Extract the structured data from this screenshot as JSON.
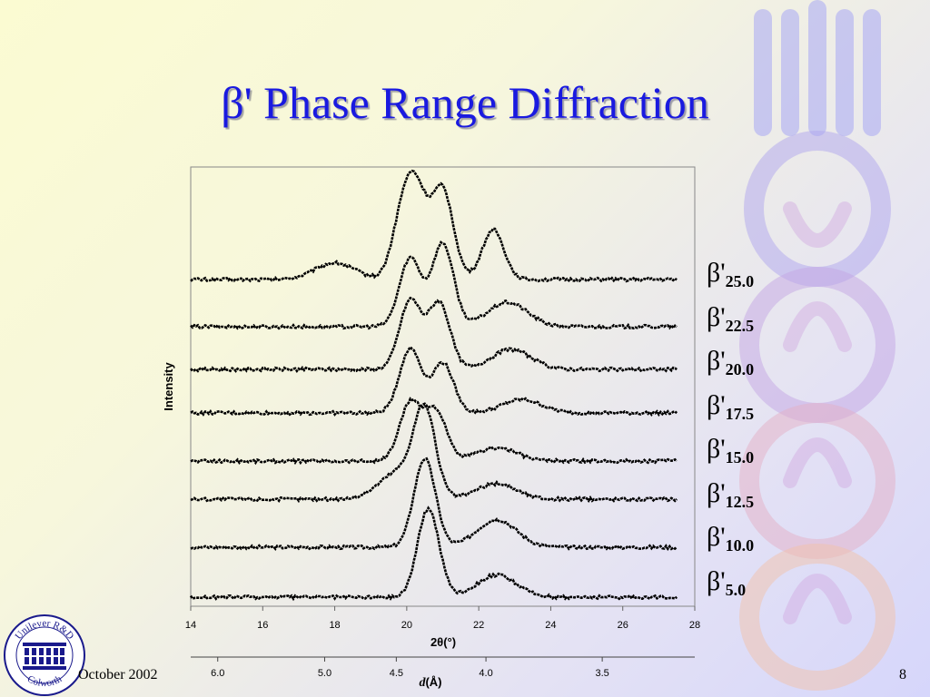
{
  "slide": {
    "title": "β' Phase Range Diffraction",
    "footer_date": "October 2002",
    "page_number": "8",
    "logo_text_top": "Unilever R&D",
    "logo_text_bottom": "Colworth"
  },
  "colors": {
    "title": "#1a1ae0",
    "trace": "#000000",
    "watermark": "#9a9af0"
  },
  "chart_data": {
    "type": "line",
    "xlabel": "2θ(°)",
    "ylabel": "Intensity",
    "secondary_xlabel": "d(Å)",
    "xlim": [
      14,
      28
    ],
    "x_ticks": [
      "14",
      "16",
      "18",
      "20",
      "22",
      "24",
      "26",
      "28"
    ],
    "secondary_x_ticks": [
      {
        "label": "6.0",
        "two_theta": 14.75
      },
      {
        "label": "5.0",
        "two_theta": 17.72
      },
      {
        "label": "4.5",
        "two_theta": 19.71
      },
      {
        "label": "4.0",
        "two_theta": 22.2
      },
      {
        "label": "3.5",
        "two_theta": 25.43
      }
    ],
    "x_range": [
      14,
      27.5
    ],
    "grid": false,
    "legend_position": "right",
    "series": [
      {
        "name": "β'25.0",
        "peaks": [
          [
            19.9,
            55
          ],
          [
            20.3,
            65
          ],
          [
            21.0,
            80
          ],
          [
            22.4,
            45
          ],
          [
            18.0,
            15
          ]
        ]
      },
      {
        "name": "β'22.5",
        "peaks": [
          [
            20.1,
            62
          ],
          [
            21.0,
            75
          ],
          [
            22.8,
            22
          ]
        ]
      },
      {
        "name": "β'20.0",
        "peaks": [
          [
            20.1,
            62
          ],
          [
            20.9,
            60
          ],
          [
            22.9,
            18
          ]
        ]
      },
      {
        "name": "β'17.5",
        "peaks": [
          [
            20.1,
            58
          ],
          [
            21.0,
            45
          ],
          [
            23.2,
            12
          ]
        ]
      },
      {
        "name": "β'15.0",
        "peaks": [
          [
            20.1,
            52
          ],
          [
            20.8,
            45
          ],
          [
            22.5,
            12
          ]
        ]
      },
      {
        "name": "β'12.5",
        "peaks": [
          [
            19.8,
            25
          ],
          [
            20.5,
            75
          ],
          [
            22.5,
            14
          ]
        ]
      },
      {
        "name": "β'10.0",
        "peaks": [
          [
            20.5,
            80
          ],
          [
            22.5,
            25
          ]
        ]
      },
      {
        "name": "β'5.0",
        "peaks": [
          [
            20.6,
            80
          ],
          [
            22.5,
            20
          ]
        ]
      }
    ]
  }
}
